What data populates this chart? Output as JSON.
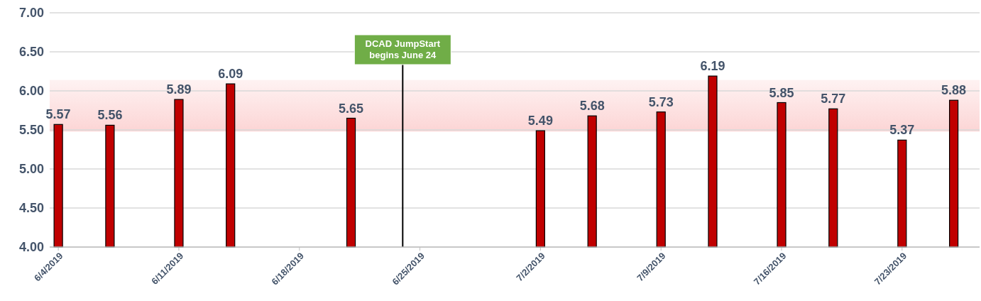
{
  "chart_data": {
    "type": "bar",
    "x": [
      "2019-06-04",
      "2019-06-07",
      "2019-06-11",
      "2019-06-14",
      "2019-06-21",
      "2019-07-02",
      "2019-07-05",
      "2019-07-09",
      "2019-07-12",
      "2019-07-16",
      "2019-07-19",
      "2019-07-23",
      "2019-07-26"
    ],
    "values": [
      5.57,
      5.56,
      5.89,
      6.09,
      5.65,
      5.49,
      5.68,
      5.73,
      6.19,
      5.85,
      5.77,
      5.37,
      5.88
    ],
    "color": "#c00000",
    "data_labels": true,
    "grid": "y",
    "xlim": [
      "2019-06-03T12:00",
      "2019-07-27T12:00"
    ],
    "xticks": [
      {
        "value": "2019-06-04",
        "label": "6/4/2019"
      },
      {
        "value": "2019-06-11",
        "label": "6/11/2019"
      },
      {
        "value": "2019-06-18",
        "label": "6/18/2019"
      },
      {
        "value": "2019-06-25",
        "label": "6/25/2019"
      },
      {
        "value": "2019-07-02",
        "label": "7/2/2019"
      },
      {
        "value": "2019-07-09",
        "label": "7/9/2019"
      },
      {
        "value": "2019-07-16",
        "label": "7/16/2019"
      },
      {
        "value": "2019-07-23",
        "label": "7/23/2019"
      }
    ],
    "ylim": [
      4,
      7
    ],
    "yticks": [
      {
        "value": 4,
        "label": "4.00"
      },
      {
        "value": 4.5,
        "label": "4.50"
      },
      {
        "value": 5,
        "label": "5.00"
      },
      {
        "value": 5.5,
        "label": "5.50"
      },
      {
        "value": 6,
        "label": "6.00"
      },
      {
        "value": 6.5,
        "label": "6.50"
      },
      {
        "value": 7,
        "label": "7.00"
      }
    ],
    "bands": [
      {
        "axis": "y",
        "from": 5.48,
        "to": 6.14,
        "color": "#fcd5d5"
      }
    ],
    "ref_lines": [
      {
        "axis": "x",
        "value": "2019-06-24",
        "label": "DCAD JumpStart\nbegins June 24",
        "color": "#000000"
      }
    ]
  }
}
